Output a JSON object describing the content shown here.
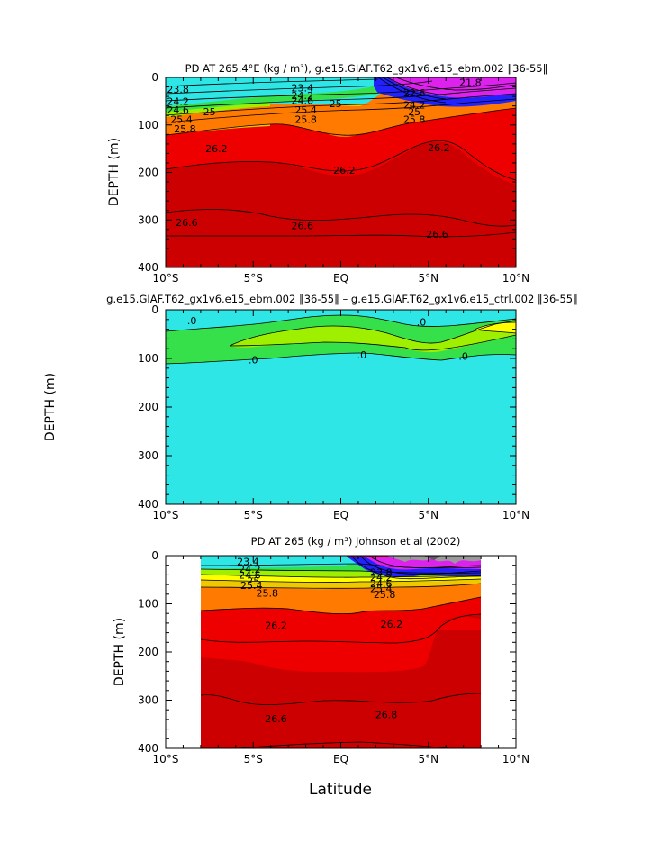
{
  "xlabel": "Latitude",
  "colors": {
    "cyan": "#2ee6e6",
    "blue": "#2222ff",
    "magenta": "#dd22ee",
    "green": "#36e04a",
    "lime": "#9ef000",
    "yellow": "#ffff00",
    "gold": "#f0c800",
    "orange": "#ff7a00",
    "red": "#ee0000",
    "darkred": "#cc0000",
    "gray": "#9a9a9a"
  },
  "chart_data": [
    {
      "type": "contour",
      "title": "PD AT 265.4°E (kg / m³), g.e15.GIAF.T62_gx1v6.e15_ebm.002 ‖36-55‖",
      "ylabel": "DEPTH (m)",
      "xlabel": "",
      "xlim": [
        -10,
        10
      ],
      "ylim": [
        400,
        0
      ],
      "x_ticks": [
        "10°S",
        "5°S",
        "EQ",
        "5°N",
        "10°N"
      ],
      "y_ticks": [
        "0",
        "100",
        "200",
        "300",
        "400"
      ],
      "contour_labels": [
        {
          "text": "23.8",
          "lat": -9.3,
          "depth": 25
        },
        {
          "text": "24.2",
          "lat": -9.3,
          "depth": 50
        },
        {
          "text": "24.6",
          "lat": -9.3,
          "depth": 68
        },
        {
          "text": "25",
          "lat": -7.5,
          "depth": 72
        },
        {
          "text": "25.4",
          "lat": -9.1,
          "depth": 88
        },
        {
          "text": "25.8",
          "lat": -8.9,
          "depth": 108
        },
        {
          "text": "23.4",
          "lat": -2.2,
          "depth": 22
        },
        {
          "text": "24.2",
          "lat": -2.2,
          "depth": 38
        },
        {
          "text": "24.6",
          "lat": -2.2,
          "depth": 48
        },
        {
          "text": "25",
          "lat": -0.3,
          "depth": 55
        },
        {
          "text": "25.4",
          "lat": -2.0,
          "depth": 68
        },
        {
          "text": "25.8",
          "lat": -2.0,
          "depth": 88
        },
        {
          "text": "21.8",
          "lat": 7.4,
          "depth": 10
        },
        {
          "text": "22.6",
          "lat": 4.2,
          "depth": 32
        },
        {
          "text": "24.2",
          "lat": 4.2,
          "depth": 58
        },
        {
          "text": "25",
          "lat": 4.2,
          "depth": 72
        },
        {
          "text": "25.8",
          "lat": 4.2,
          "depth": 88
        },
        {
          "text": "26.2",
          "lat": -7.1,
          "depth": 150
        },
        {
          "text": "26.2",
          "lat": 0.2,
          "depth": 195
        },
        {
          "text": "26.2",
          "lat": 5.6,
          "depth": 148
        },
        {
          "text": "26.6",
          "lat": -8.8,
          "depth": 305
        },
        {
          "text": "26.6",
          "lat": -2.2,
          "depth": 312
        },
        {
          "text": "26.6",
          "lat": 5.5,
          "depth": 330
        }
      ]
    },
    {
      "type": "contour",
      "title": "g.e15.GIAF.T62_gx1v6.e15_ebm.002 ‖36-55‖ – g.e15.GIAF.T62_gx1v6.e15_ctrl.002 ‖36-55‖",
      "ylabel": "DEPTH (m)",
      "xlabel": "",
      "xlim": [
        -10,
        10
      ],
      "ylim": [
        400,
        0
      ],
      "x_ticks": [
        "10°S",
        "5°S",
        "EQ",
        "5°N",
        "10°N"
      ],
      "y_ticks": [
        "0",
        "100",
        "200",
        "300",
        "400"
      ],
      "contour_labels": [
        {
          "text": ".0",
          "lat": -8.5,
          "depth": 22
        },
        {
          "text": ".0",
          "lat": 4.6,
          "depth": 25
        },
        {
          "text": ".0",
          "lat": -5.0,
          "depth": 103
        },
        {
          "text": ".0",
          "lat": 1.2,
          "depth": 93
        },
        {
          "text": ".0",
          "lat": 7.0,
          "depth": 95
        }
      ]
    },
    {
      "type": "contour",
      "title": "PD AT 265 (kg / m³) Johnson et al (2002)",
      "ylabel": "DEPTH (m)",
      "xlabel": "Latitude",
      "xlim": [
        -10,
        10
      ],
      "ylim": [
        400,
        0
      ],
      "data_lat_range": [
        -8,
        8
      ],
      "x_ticks": [
        "10°S",
        "5°S",
        "EQ",
        "5°N",
        "10°N"
      ],
      "y_ticks": [
        "0",
        "100",
        "200",
        "300",
        "400"
      ],
      "contour_labels": [
        {
          "text": "23.4",
          "lat": -5.3,
          "depth": 12
        },
        {
          "text": "24.2",
          "lat": -5.2,
          "depth": 28
        },
        {
          "text": "24.6",
          "lat": -5.2,
          "depth": 40
        },
        {
          "text": "25",
          "lat": -5.0,
          "depth": 52
        },
        {
          "text": "25.4",
          "lat": -5.1,
          "depth": 62
        },
        {
          "text": "25.8",
          "lat": -4.2,
          "depth": 78
        },
        {
          "text": "23.8",
          "lat": 2.3,
          "depth": 35
        },
        {
          "text": "24.2",
          "lat": 2.3,
          "depth": 45
        },
        {
          "text": "24.6",
          "lat": 2.3,
          "depth": 58
        },
        {
          "text": "25.4",
          "lat": 2.3,
          "depth": 68
        },
        {
          "text": "25.8",
          "lat": 2.5,
          "depth": 80
        },
        {
          "text": "26.2",
          "lat": -3.7,
          "depth": 145
        },
        {
          "text": "26.2",
          "lat": 2.9,
          "depth": 142
        },
        {
          "text": "26.6",
          "lat": -3.7,
          "depth": 338
        },
        {
          "text": "26.8",
          "lat": 2.6,
          "depth": 330
        }
      ]
    }
  ]
}
